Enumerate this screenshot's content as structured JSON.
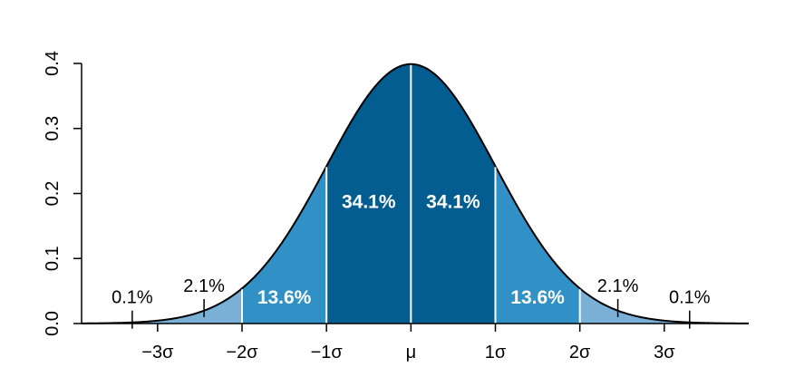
{
  "chart_data": {
    "type": "area",
    "title": "",
    "xlabel": "",
    "ylabel": "",
    "xlim": [
      -3.9,
      4.0
    ],
    "ylim": [
      0,
      0.4
    ],
    "grid": false,
    "legend": "none",
    "x_ticks": [
      {
        "value": -3,
        "label": "−3σ"
      },
      {
        "value": -2,
        "label": "−2σ"
      },
      {
        "value": -1,
        "label": "−1σ"
      },
      {
        "value": 0,
        "label": "μ"
      },
      {
        "value": 1,
        "label": "1σ"
      },
      {
        "value": 2,
        "label": "2σ"
      },
      {
        "value": 3,
        "label": "3σ"
      }
    ],
    "y_ticks": [
      {
        "value": 0.0,
        "label": "0.0"
      },
      {
        "value": 0.1,
        "label": "0.1"
      },
      {
        "value": 0.2,
        "label": "0.2"
      },
      {
        "value": 0.3,
        "label": "0.3"
      },
      {
        "value": 0.4,
        "label": "0.4"
      }
    ],
    "curve": {
      "function": "standard normal density",
      "mean": 0,
      "sd": 1
    },
    "regions": [
      {
        "from": -2,
        "to": -1,
        "label": "13.6%",
        "color": "#3190c5"
      },
      {
        "from": -1,
        "to": 0,
        "label": "34.1%",
        "color": "#045d90"
      },
      {
        "from": 0,
        "to": 1,
        "label": "34.1%",
        "color": "#045d90"
      },
      {
        "from": 1,
        "to": 2,
        "label": "13.6%",
        "color": "#3190c5"
      },
      {
        "from": -3,
        "to": -2,
        "label": "2.1%",
        "color": "#7ab0d6"
      },
      {
        "from": 2,
        "to": 3,
        "label": "2.1%",
        "color": "#7ab0d6"
      },
      {
        "from": -3.9,
        "to": -3,
        "label": "0.1%",
        "color": "#7ab0d6"
      },
      {
        "from": 3,
        "to": 4.0,
        "label": "0.1%",
        "color": "#7ab0d6"
      }
    ],
    "annotation_leaders": [
      {
        "label": "2.1%",
        "x": -2.45
      },
      {
        "label": "2.1%",
        "x": 2.45
      },
      {
        "label": "0.1%",
        "x": -3.3
      },
      {
        "label": "0.1%",
        "x": 3.3
      }
    ]
  }
}
